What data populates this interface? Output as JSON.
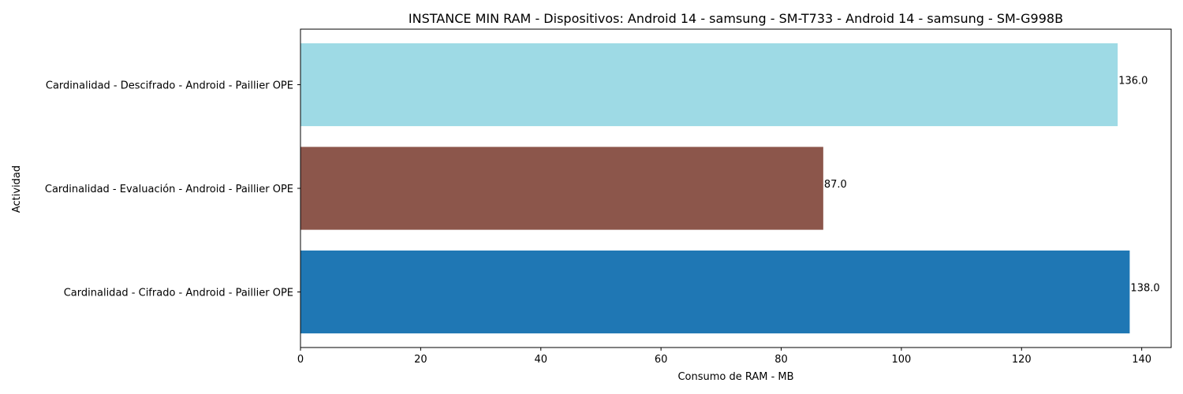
{
  "chart_data": {
    "type": "bar",
    "orientation": "horizontal",
    "title": "INSTANCE MIN RAM - Dispositivos: Android 14 - samsung - SM-T733 - Android 14 - samsung - SM-G998B",
    "xlabel": "Consumo de RAM - MB",
    "ylabel": "Actividad",
    "categories": [
      "Cardinalidad - Cifrado - Android - Paillier OPE",
      "Cardinalidad - Evaluación - Android - Paillier OPE",
      "Cardinalidad - Descifrado - Android - Paillier OPE"
    ],
    "values": [
      138.0,
      87.0,
      136.0
    ],
    "value_labels": [
      "138.0",
      "87.0",
      "136.0"
    ],
    "colors": [
      "#1f77b4",
      "#8c564b",
      "#9edae5"
    ],
    "xlim": [
      0,
      144.9
    ],
    "xticks": [
      0,
      20,
      40,
      60,
      80,
      100,
      120,
      140
    ],
    "grid": false,
    "legend": "none"
  }
}
